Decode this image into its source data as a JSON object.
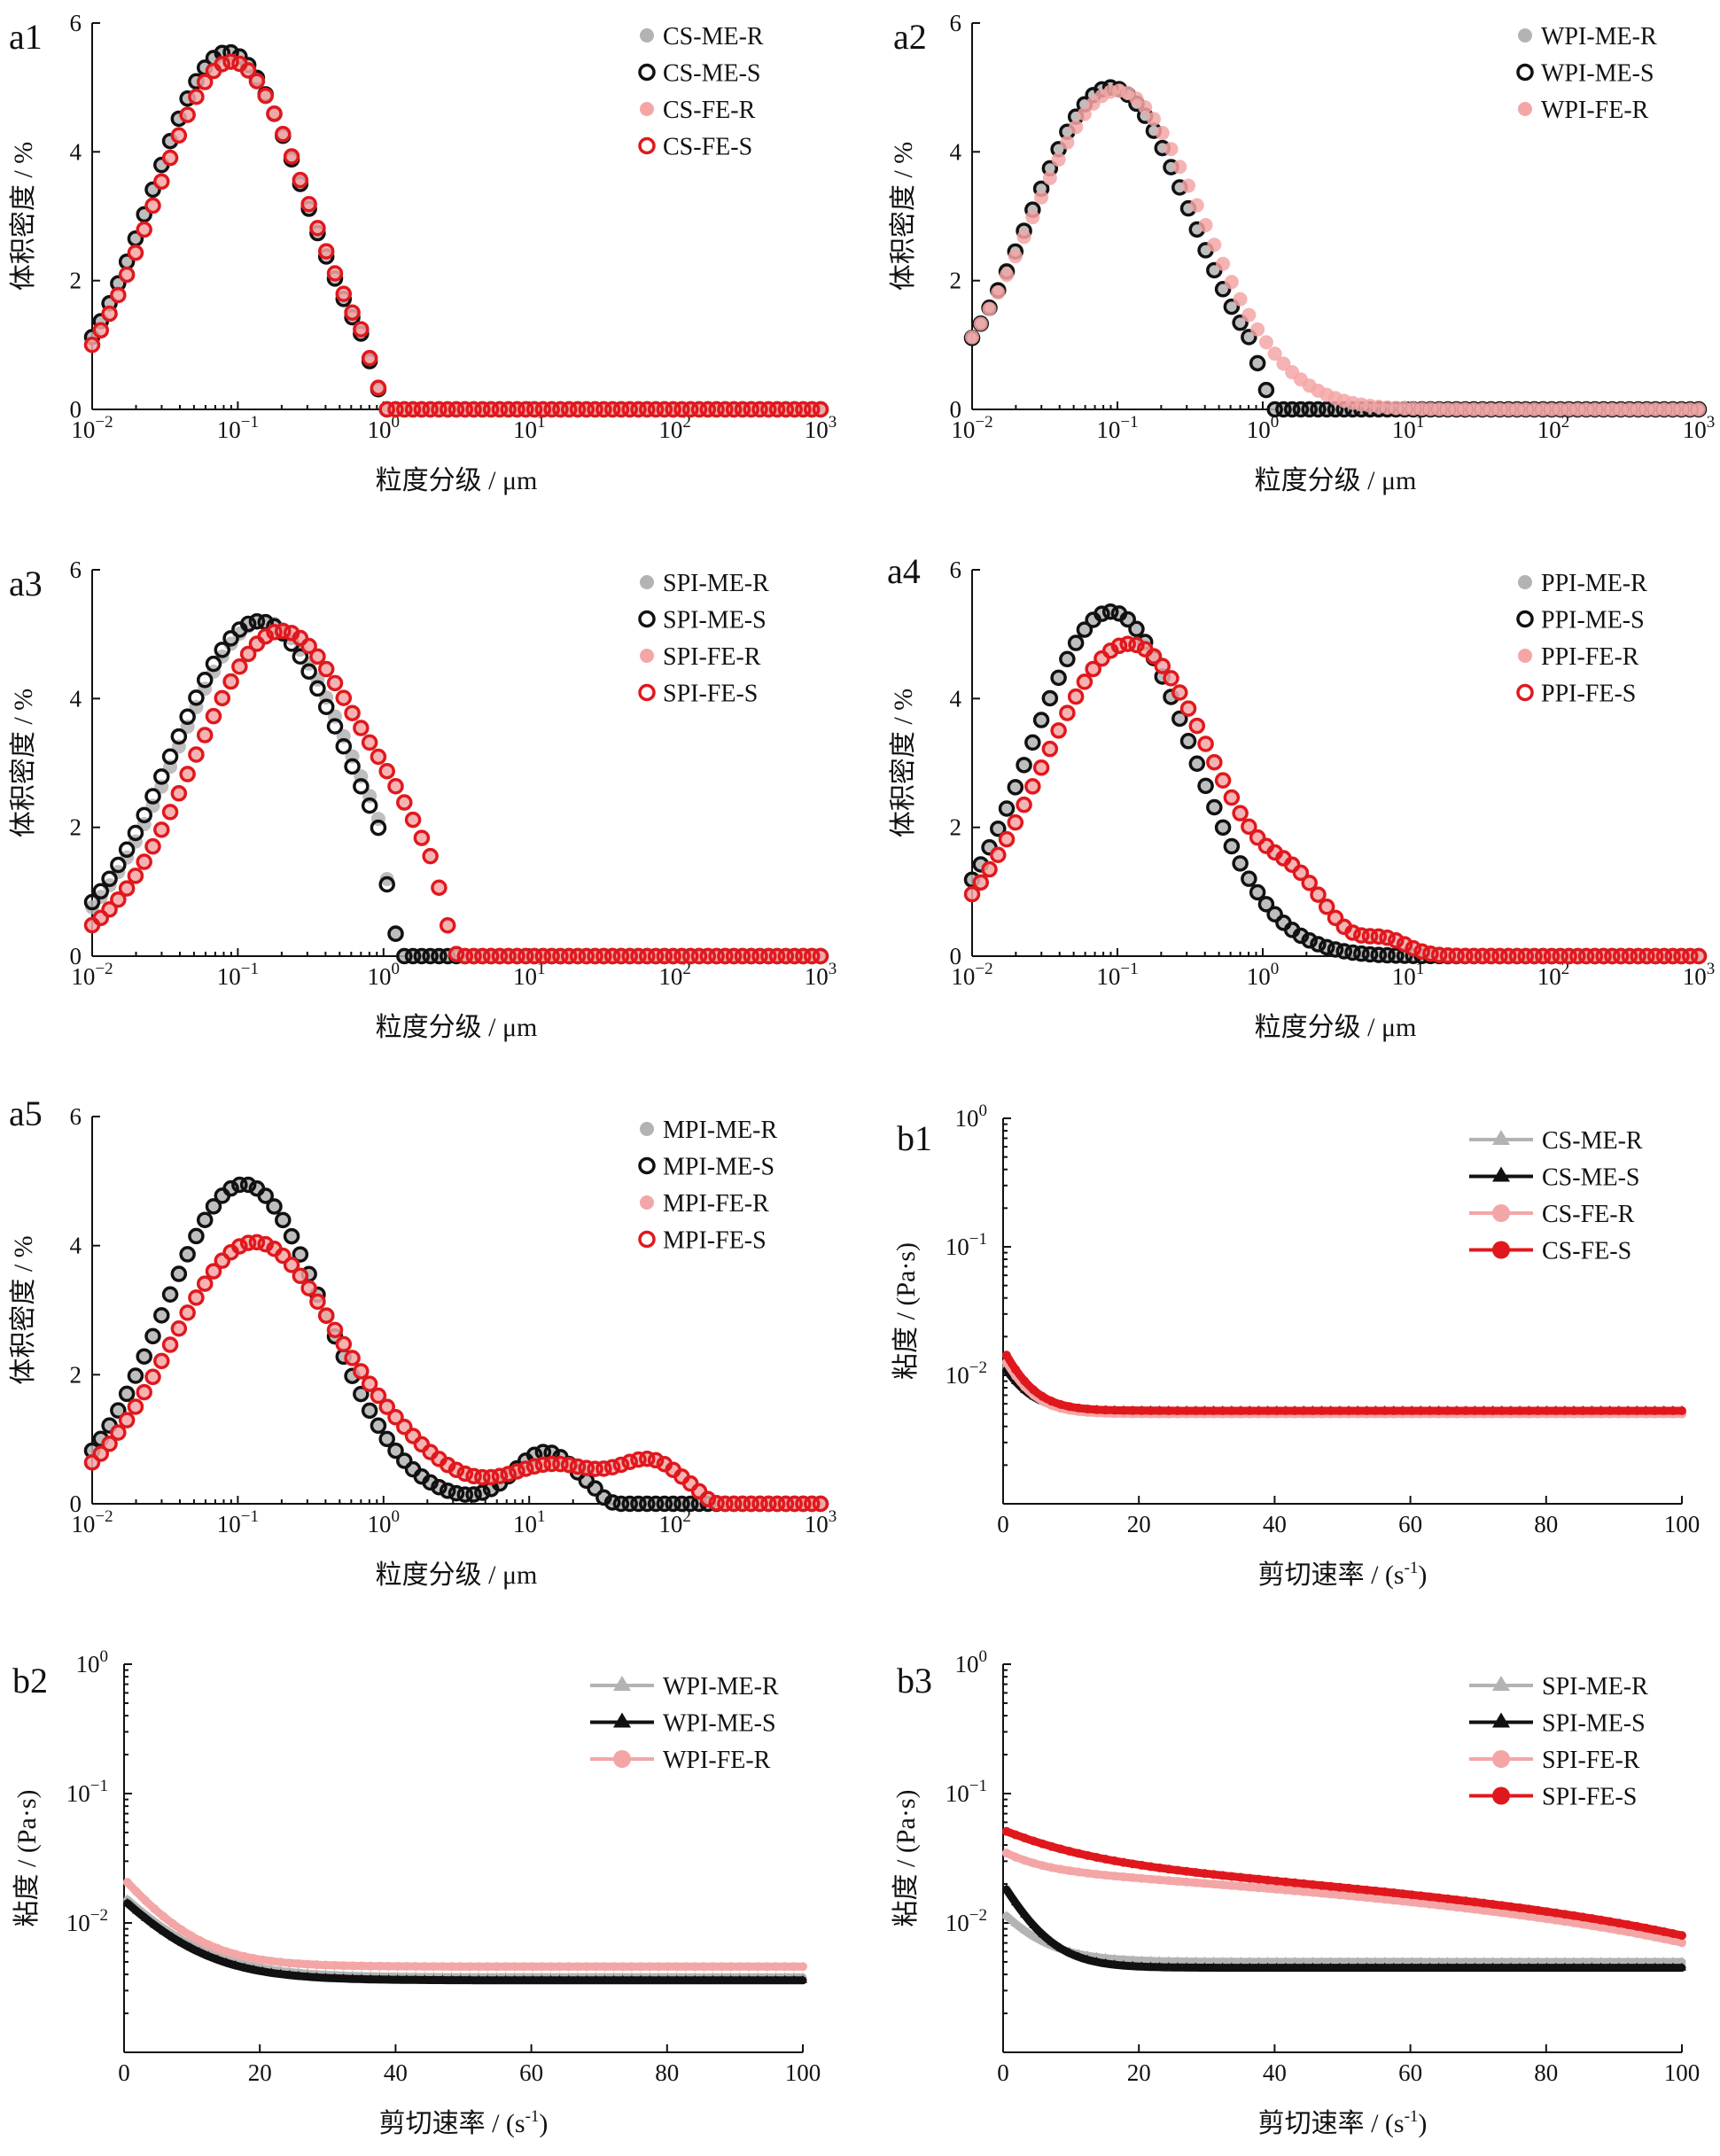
{
  "chart_data": [
    {
      "id": "a1",
      "panel_label": "a1",
      "type": "scatter",
      "x_scale": "log",
      "xlim": [
        0.01,
        1000
      ],
      "ylim": [
        0,
        6
      ],
      "x_tick_values": [
        0.01,
        0.1,
        1,
        10,
        100,
        1000
      ],
      "x_tick_bases": [
        "10",
        "10",
        "10",
        "10",
        "10",
        "10"
      ],
      "x_tick_exps": [
        "−2",
        "−1",
        "0",
        "1",
        "2",
        "3"
      ],
      "y_tick_values": [
        0,
        2,
        4,
        6
      ],
      "y_tick_labels": [
        "0",
        "2",
        "4",
        "6"
      ],
      "xlabel": "粒度分级 / μm",
      "ylabel": "体积密度 / %",
      "legend_position": "top-right",
      "series": [
        {
          "name": "CS-ME-R",
          "style": "filled-circle",
          "color": "#b3b3b3",
          "shape": "lognormal",
          "peak_x": 0.085,
          "peak_y": 5.55,
          "sigma": 0.52,
          "xmin": 0.01,
          "xmax": 1.05
        },
        {
          "name": "CS-ME-S",
          "style": "open-circle",
          "color": "#111111",
          "shape": "lognormal",
          "peak_x": 0.085,
          "peak_y": 5.55,
          "sigma": 0.52,
          "xmin": 0.01,
          "xmax": 1.05
        },
        {
          "name": "CS-FE-R",
          "style": "filled-circle",
          "color": "#f4a6a6",
          "shape": "lognormal",
          "peak_x": 0.09,
          "peak_y": 5.4,
          "sigma": 0.52,
          "xmin": 0.01,
          "xmax": 1.05
        },
        {
          "name": "CS-FE-S",
          "style": "open-circle",
          "color": "#e0181d",
          "shape": "lognormal",
          "peak_x": 0.09,
          "peak_y": 5.4,
          "sigma": 0.52,
          "xmin": 0.01,
          "xmax": 1.05
        }
      ]
    },
    {
      "id": "a2",
      "panel_label": "a2",
      "type": "scatter",
      "x_scale": "log",
      "xlim": [
        0.01,
        1000
      ],
      "ylim": [
        0,
        6
      ],
      "x_tick_values": [
        0.01,
        0.1,
        1,
        10,
        100,
        1000
      ],
      "x_tick_bases": [
        "10",
        "10",
        "10",
        "10",
        "10",
        "10"
      ],
      "x_tick_exps": [
        "−2",
        "−1",
        "0",
        "1",
        "2",
        "3"
      ],
      "y_tick_values": [
        0,
        2,
        4,
        6
      ],
      "y_tick_labels": [
        "0",
        "2",
        "4",
        "6"
      ],
      "xlabel": "粒度分级 / μm",
      "ylabel": "体积密度 / %",
      "legend_position": "top-right",
      "series": [
        {
          "name": "WPI-ME-R",
          "style": "filled-circle",
          "color": "#b3b3b3",
          "shape": "lognormal",
          "peak_x": 0.09,
          "peak_y": 5.0,
          "sigma": 0.55,
          "xmin": 0.01,
          "xmax": 1.2
        },
        {
          "name": "WPI-ME-S",
          "style": "open-circle",
          "color": "#111111",
          "shape": "lognormal",
          "peak_x": 0.09,
          "peak_y": 5.0,
          "sigma": 0.55,
          "xmin": 0.01,
          "xmax": 1.2
        },
        {
          "name": "WPI-FE-R",
          "style": "filled-circle",
          "color": "#f4a6a6",
          "shape": "lognormal",
          "peak_x": 0.1,
          "peak_y": 4.95,
          "sigma": 0.58,
          "xmin": 0.01,
          "xmax": 1000
        }
      ]
    },
    {
      "id": "a3",
      "panel_label": "a3",
      "type": "scatter",
      "x_scale": "log",
      "xlim": [
        0.01,
        1000
      ],
      "ylim": [
        0,
        6
      ],
      "x_tick_values": [
        0.01,
        0.1,
        1,
        10,
        100,
        1000
      ],
      "x_tick_bases": [
        "10",
        "10",
        "10",
        "10",
        "10",
        "10"
      ],
      "x_tick_exps": [
        "−2",
        "−1",
        "0",
        "1",
        "2",
        "3"
      ],
      "y_tick_values": [
        0,
        2,
        4,
        6
      ],
      "y_tick_labels": [
        "0",
        "2",
        "4",
        "6"
      ],
      "xlabel": "粒度分级 / μm",
      "ylabel": "体积密度 / %",
      "legend_position": "top-right",
      "series": [
        {
          "name": "SPI-ME-R",
          "style": "filled-circle",
          "color": "#b3b3b3",
          "shape": "lognormal",
          "peak_x": 0.15,
          "peak_y": 5.2,
          "sigma": 0.6,
          "xmin": 0.01,
          "xmax": 1.3,
          "extra": []
        },
        {
          "name": "SPI-ME-S",
          "style": "open-circle",
          "color": "#111111",
          "shape": "lognormal",
          "peak_x": 0.14,
          "peak_y": 5.2,
          "sigma": 0.6,
          "xmin": 0.01,
          "xmax": 1.3,
          "extra": []
        },
        {
          "name": "SPI-FE-R",
          "style": "filled-circle",
          "color": "#f4a6a6",
          "shape": "lognormal",
          "peak_x": 0.2,
          "peak_y": 5.05,
          "sigma": 0.6,
          "xmin": 0.01,
          "xmax": 3.2,
          "extra": [
            {
              "c": 1.4,
              "h": 0.5,
              "s": 0.22
            }
          ]
        },
        {
          "name": "SPI-FE-S",
          "style": "open-circle",
          "color": "#e0181d",
          "shape": "lognormal",
          "peak_x": 0.2,
          "peak_y": 5.05,
          "sigma": 0.6,
          "xmin": 0.01,
          "xmax": 3.2,
          "extra": [
            {
              "c": 1.4,
              "h": 0.5,
              "s": 0.22
            }
          ]
        }
      ]
    },
    {
      "id": "a4",
      "panel_label": "a4",
      "type": "scatter",
      "x_scale": "log",
      "xlim": [
        0.01,
        1000
      ],
      "ylim": [
        0,
        6
      ],
      "x_tick_values": [
        0.01,
        0.1,
        1,
        10,
        100,
        1000
      ],
      "x_tick_bases": [
        "10",
        "10",
        "10",
        "10",
        "10",
        "10"
      ],
      "x_tick_exps": [
        "−2",
        "−1",
        "0",
        "1",
        "2",
        "3"
      ],
      "y_tick_values": [
        0,
        2,
        4,
        6
      ],
      "y_tick_labels": [
        "0",
        "2",
        "4",
        "6"
      ],
      "xlabel": "粒度分级 / μm",
      "ylabel": "体积密度 / %",
      "legend_position": "top-right",
      "series": [
        {
          "name": "PPI-ME-R",
          "style": "filled-circle",
          "color": "#b3b3b3",
          "shape": "lognormal",
          "peak_x": 0.09,
          "peak_y": 5.35,
          "sigma": 0.55,
          "xmin": 0.01,
          "xmax": 1000,
          "extra": []
        },
        {
          "name": "PPI-ME-S",
          "style": "open-circle",
          "color": "#111111",
          "shape": "lognormal",
          "peak_x": 0.09,
          "peak_y": 5.35,
          "sigma": 0.55,
          "xmin": 0.01,
          "xmax": 1000,
          "extra": []
        },
        {
          "name": "PPI-FE-R",
          "style": "filled-circle",
          "color": "#f4a6a6",
          "shape": "lognormal",
          "peak_x": 0.12,
          "peak_y": 4.85,
          "sigma": 0.6,
          "xmin": 0.01,
          "xmax": 1000,
          "extra": [
            {
              "c": 1.8,
              "h": 0.6,
              "s": 0.2
            },
            {
              "c": 7.0,
              "h": 0.22,
              "s": 0.15
            }
          ]
        },
        {
          "name": "PPI-FE-S",
          "style": "open-circle",
          "color": "#e0181d",
          "shape": "lognormal",
          "peak_x": 0.12,
          "peak_y": 4.85,
          "sigma": 0.6,
          "xmin": 0.01,
          "xmax": 1000,
          "extra": [
            {
              "c": 1.8,
              "h": 0.6,
              "s": 0.2
            },
            {
              "c": 7.0,
              "h": 0.22,
              "s": 0.15
            }
          ]
        }
      ]
    },
    {
      "id": "a5",
      "panel_label": "a5",
      "type": "scatter",
      "x_scale": "log",
      "xlim": [
        0.01,
        1000
      ],
      "ylim": [
        0,
        6
      ],
      "x_tick_values": [
        0.01,
        0.1,
        1,
        10,
        100,
        1000
      ],
      "x_tick_bases": [
        "10",
        "10",
        "10",
        "10",
        "10",
        "10"
      ],
      "x_tick_exps": [
        "−2",
        "−1",
        "0",
        "1",
        "2",
        "3"
      ],
      "y_tick_values": [
        0,
        2,
        4,
        6
      ],
      "y_tick_labels": [
        "0",
        "2",
        "4",
        "6"
      ],
      "xlabel": "粒度分级 / μm",
      "ylabel": "体积密度 / %",
      "legend_position": "top-right",
      "series": [
        {
          "name": "MPI-ME-R",
          "style": "filled-circle",
          "color": "#b3b3b3",
          "shape": "lognormal",
          "peak_x": 0.11,
          "peak_y": 4.95,
          "sigma": 0.55,
          "xmin": 0.01,
          "xmax": 40,
          "extra": [
            {
              "c": 13,
              "h": 0.8,
              "s": 0.22
            }
          ]
        },
        {
          "name": "MPI-ME-S",
          "style": "open-circle",
          "color": "#111111",
          "shape": "lognormal",
          "peak_x": 0.11,
          "peak_y": 4.95,
          "sigma": 0.55,
          "xmin": 0.01,
          "xmax": 40,
          "extra": [
            {
              "c": 13,
              "h": 0.8,
              "s": 0.22
            }
          ]
        },
        {
          "name": "MPI-FE-R",
          "style": "filled-circle",
          "color": "#f4a6a6",
          "shape": "lognormal",
          "peak_x": 0.13,
          "peak_y": 4.05,
          "sigma": 0.58,
          "xmin": 0.01,
          "xmax": 200,
          "extra": [
            {
              "c": 1.5,
              "h": 0.35,
              "s": 0.35
            },
            {
              "c": 15,
              "h": 0.6,
              "s": 0.32
            },
            {
              "c": 70,
              "h": 0.62,
              "s": 0.22
            }
          ]
        },
        {
          "name": "MPI-FE-S",
          "style": "open-circle",
          "color": "#e0181d",
          "shape": "lognormal",
          "peak_x": 0.13,
          "peak_y": 4.05,
          "sigma": 0.58,
          "xmin": 0.01,
          "xmax": 200,
          "extra": [
            {
              "c": 1.5,
              "h": 0.35,
              "s": 0.35
            },
            {
              "c": 15,
              "h": 0.6,
              "s": 0.32
            },
            {
              "c": 70,
              "h": 0.62,
              "s": 0.22
            }
          ]
        }
      ]
    },
    {
      "id": "b1",
      "panel_label": "b1",
      "type": "line",
      "x_scale": "linear",
      "y_scale": "log",
      "xlim": [
        0,
        100
      ],
      "ylim": [
        0.001,
        1
      ],
      "x_tick_values": [
        0,
        20,
        40,
        60,
        80,
        100
      ],
      "x_tick_labels": [
        "0",
        "20",
        "40",
        "60",
        "80",
        "100"
      ],
      "y_tick_values": [
        0.01,
        0.1,
        1
      ],
      "y_tick_bases": [
        "10",
        "10",
        "10"
      ],
      "y_tick_exps": [
        "−2",
        "−1",
        "0"
      ],
      "xlabel_text": "剪切速率 / (s",
      "xlabel_sup": "-1",
      "xlabel_end": ")",
      "ylabel": "粘度 / (Pa·s)",
      "legend_position": "top-right",
      "series": [
        {
          "name": "CS-ME-R",
          "marker": "triangle",
          "color": "#b3b3b3",
          "initial": 0.013,
          "plateau": 0.0052,
          "slope": 0,
          "tau": 3
        },
        {
          "name": "CS-ME-S",
          "marker": "triangle",
          "color": "#111111",
          "initial": 0.012,
          "plateau": 0.0053,
          "slope": 0,
          "tau": 3
        },
        {
          "name": "CS-FE-R",
          "marker": "circle",
          "color": "#f4a6a6",
          "initial": 0.014,
          "plateau": 0.005,
          "slope": 0,
          "tau": 3
        },
        {
          "name": "CS-FE-S",
          "marker": "circle",
          "color": "#e0181d",
          "initial": 0.016,
          "plateau": 0.0053,
          "slope": 0,
          "tau": 3
        }
      ]
    },
    {
      "id": "b2",
      "panel_label": "b2",
      "type": "line",
      "x_scale": "linear",
      "y_scale": "log",
      "xlim": [
        0,
        100
      ],
      "ylim": [
        0.001,
        1
      ],
      "x_tick_values": [
        0,
        20,
        40,
        60,
        80,
        100
      ],
      "x_tick_labels": [
        "0",
        "20",
        "40",
        "60",
        "80",
        "100"
      ],
      "y_tick_values": [
        0.01,
        0.1,
        1
      ],
      "y_tick_bases": [
        "10",
        "10",
        "10"
      ],
      "y_tick_exps": [
        "−2",
        "−1",
        "0"
      ],
      "xlabel_text": "剪切速率 / (s",
      "xlabel_sup": "-1",
      "xlabel_end": ")",
      "ylabel": "粘度 / (Pa·s)",
      "legend_position": "top-right",
      "series": [
        {
          "name": "WPI-ME-R",
          "marker": "triangle",
          "color": "#b3b3b3",
          "initial": 0.016,
          "plateau": 0.0038,
          "slope": 0,
          "tau": 7
        },
        {
          "name": "WPI-ME-S",
          "marker": "triangle",
          "color": "#111111",
          "initial": 0.015,
          "plateau": 0.0036,
          "slope": 0,
          "tau": 7
        },
        {
          "name": "WPI-FE-R",
          "marker": "circle",
          "color": "#f4a6a6",
          "initial": 0.022,
          "plateau": 0.0046,
          "slope": 0,
          "tau": 6
        }
      ]
    },
    {
      "id": "b3",
      "panel_label": "b3",
      "type": "line",
      "x_scale": "linear",
      "y_scale": "log",
      "xlim": [
        0,
        100
      ],
      "ylim": [
        0.001,
        1
      ],
      "x_tick_values": [
        0,
        20,
        40,
        60,
        80,
        100
      ],
      "x_tick_labels": [
        "0",
        "20",
        "40",
        "60",
        "80",
        "100"
      ],
      "y_tick_values": [
        0.01,
        0.1,
        1
      ],
      "y_tick_bases": [
        "10",
        "10",
        "10"
      ],
      "y_tick_exps": [
        "−2",
        "−1",
        "0"
      ],
      "xlabel_text": "剪切速率 / (s",
      "xlabel_sup": "-1",
      "xlabel_end": ")",
      "ylabel": "粘度 / (Pa·s)",
      "legend_position": "top-right",
      "series": [
        {
          "name": "SPI-ME-R",
          "marker": "triangle",
          "color": "#b3b3b3",
          "initial": 0.012,
          "plateau": 0.005,
          "slope": 0,
          "tau": 5
        },
        {
          "name": "SPI-ME-S",
          "marker": "triangle",
          "color": "#111111",
          "initial": 0.02,
          "plateau": 0.0045,
          "slope": 0,
          "tau": 4
        },
        {
          "name": "SPI-FE-R",
          "marker": "circle",
          "color": "#f4a6a6",
          "initial": 0.032,
          "plateau": 0.022,
          "slope": -0.0017,
          "tau": 5
        },
        {
          "name": "SPI-FE-S",
          "marker": "circle",
          "color": "#e0181d",
          "initial": 0.048,
          "plateau": 0.025,
          "slope": -0.0017,
          "tau": 10
        }
      ]
    }
  ]
}
